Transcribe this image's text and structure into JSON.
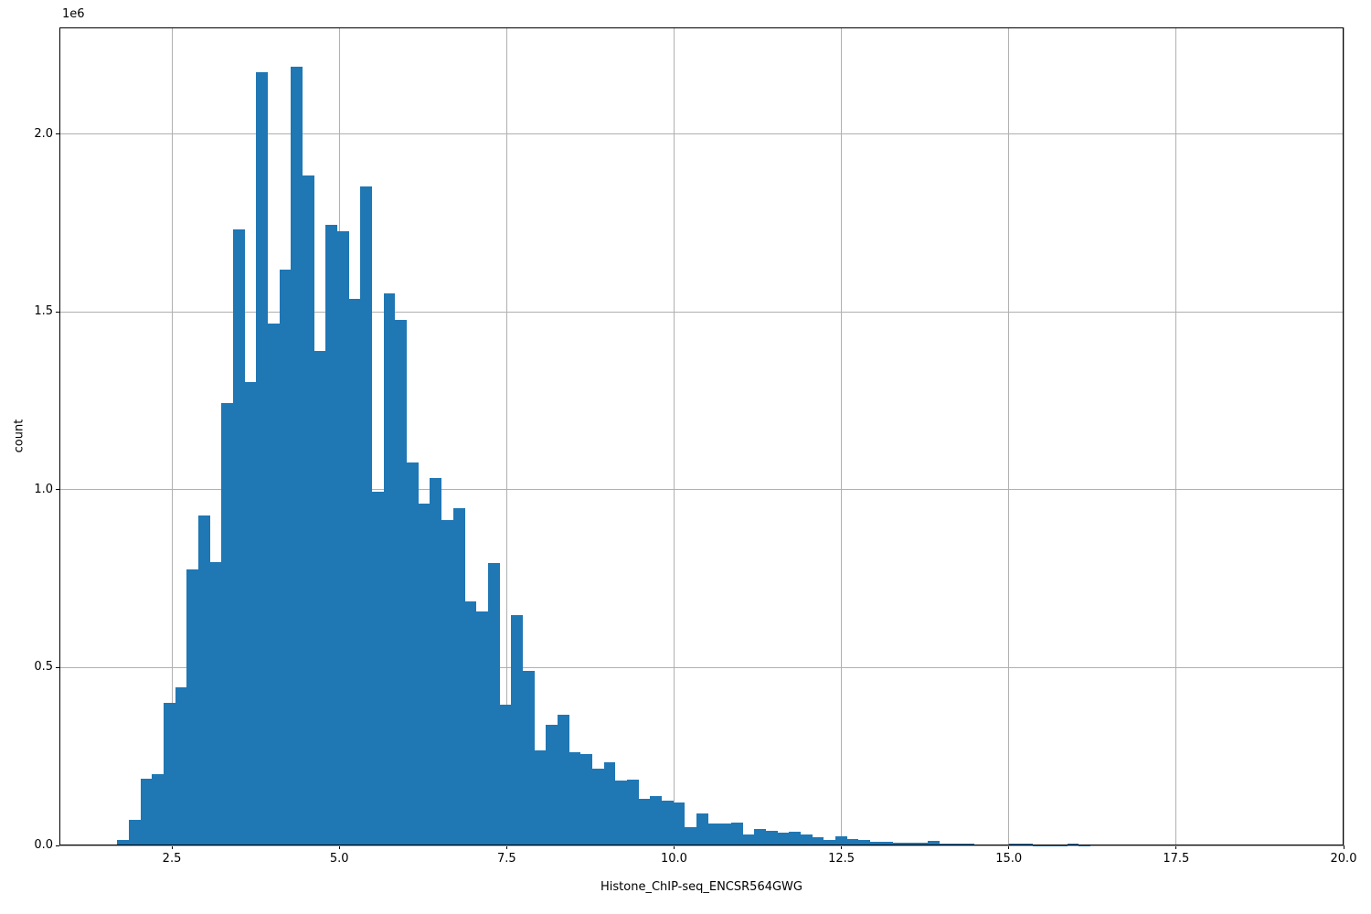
{
  "figure": {
    "xlabel": "Histone_ChIP-seq_ENCSR564GWG",
    "ylabel": "count",
    "offset_text": "1e6"
  },
  "chart_data": {
    "type": "bar",
    "subtype": "histogram",
    "title": "",
    "xlabel": "Histone_ChIP-seq_ENCSR564GWG",
    "ylabel": "count",
    "y_offset_text": "1e6",
    "bin_start": 1.685,
    "bin_width": 0.173,
    "counts": [
      15000,
      72000,
      188000,
      200000,
      401000,
      445000,
      776000,
      928000,
      797000,
      1244000,
      1733000,
      1303000,
      2173000,
      1467000,
      1619000,
      2189000,
      1883000,
      1390000,
      1746000,
      1726000,
      1537000,
      1853000,
      995000,
      1552000,
      1477000,
      1077000,
      960000,
      1034000,
      916000,
      949000,
      687000,
      657000,
      794000,
      396000,
      647000,
      492000,
      268000,
      339000,
      367000,
      261000,
      257000,
      217000,
      234000,
      182000,
      184000,
      130000,
      140000,
      126000,
      120000,
      51000,
      90000,
      62000,
      61000,
      65000,
      31000,
      45000,
      41000,
      37000,
      39000,
      31000,
      24000,
      15000,
      26000,
      17000,
      15000,
      11000,
      11000,
      7000,
      7000,
      7000,
      13000,
      5000,
      4000,
      4000,
      3000,
      3000,
      2000,
      4000,
      5000,
      1000,
      1000,
      1000,
      5000,
      1000
    ],
    "xlim": [
      0.8207,
      20.0
    ],
    "ylim": [
      0,
      2300000
    ],
    "x_ticks": [
      2.5,
      5.0,
      7.5,
      10.0,
      12.5,
      15.0,
      17.5,
      20.0
    ],
    "x_tick_labels": [
      "2.5",
      "5.0",
      "7.5",
      "10.0",
      "12.5",
      "15.0",
      "17.5",
      "20.0"
    ],
    "y_ticks": [
      0,
      500000,
      1000000,
      1500000,
      2000000
    ],
    "y_tick_labels": [
      "0.0",
      "0.5",
      "1.0",
      "1.5",
      "2.0"
    ],
    "grid": true,
    "legend_position": "none",
    "bar_color": "#1f77b4",
    "grid_color": "#b0b0b0",
    "spine_color": "#000000",
    "background_color": "#ffffff"
  }
}
